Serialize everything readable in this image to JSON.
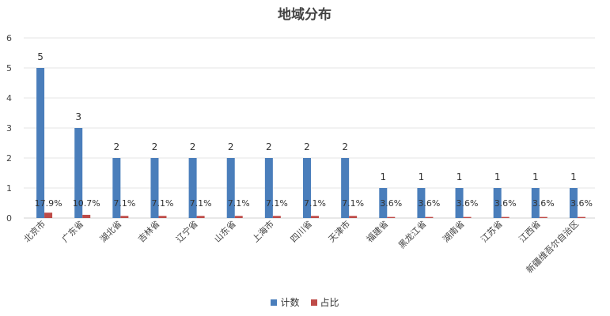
{
  "chart_data": {
    "type": "bar",
    "title": "地域分布",
    "categories": [
      "北京市",
      "广东省",
      "湖北省",
      "吉林省",
      "辽宁省",
      "山东省",
      "上海市",
      "四川省",
      "天津市",
      "福建省",
      "黑龙江省",
      "湖南省",
      "江苏省",
      "江西省",
      "新疆维吾尔自治区"
    ],
    "series": [
      {
        "name": "计数",
        "color": "#4a7ebb",
        "values": [
          5,
          3,
          2,
          2,
          2,
          2,
          2,
          2,
          2,
          1,
          1,
          1,
          1,
          1,
          1
        ],
        "labels": [
          "5",
          "3",
          "2",
          "2",
          "2",
          "2",
          "2",
          "2",
          "2",
          "1",
          "1",
          "1",
          "1",
          "1",
          "1"
        ]
      },
      {
        "name": "占比",
        "color": "#be4b48",
        "values": [
          0.179,
          0.107,
          0.071,
          0.071,
          0.071,
          0.071,
          0.071,
          0.071,
          0.071,
          0.036,
          0.036,
          0.036,
          0.036,
          0.036,
          0.036
        ],
        "labels": [
          "17.9%",
          "10.7%",
          "7.1%",
          "7.1%",
          "7.1%",
          "7.1%",
          "7.1%",
          "7.1%",
          "7.1%",
          "3.6%",
          "3.6%",
          "3.6%",
          "3.6%",
          "3.6%",
          "3.6%"
        ]
      }
    ],
    "yticks": [
      "0",
      "1",
      "2",
      "3",
      "4",
      "5",
      "6"
    ],
    "ylim": [
      0,
      6
    ],
    "grid": true,
    "legend_position": "bottom"
  }
}
